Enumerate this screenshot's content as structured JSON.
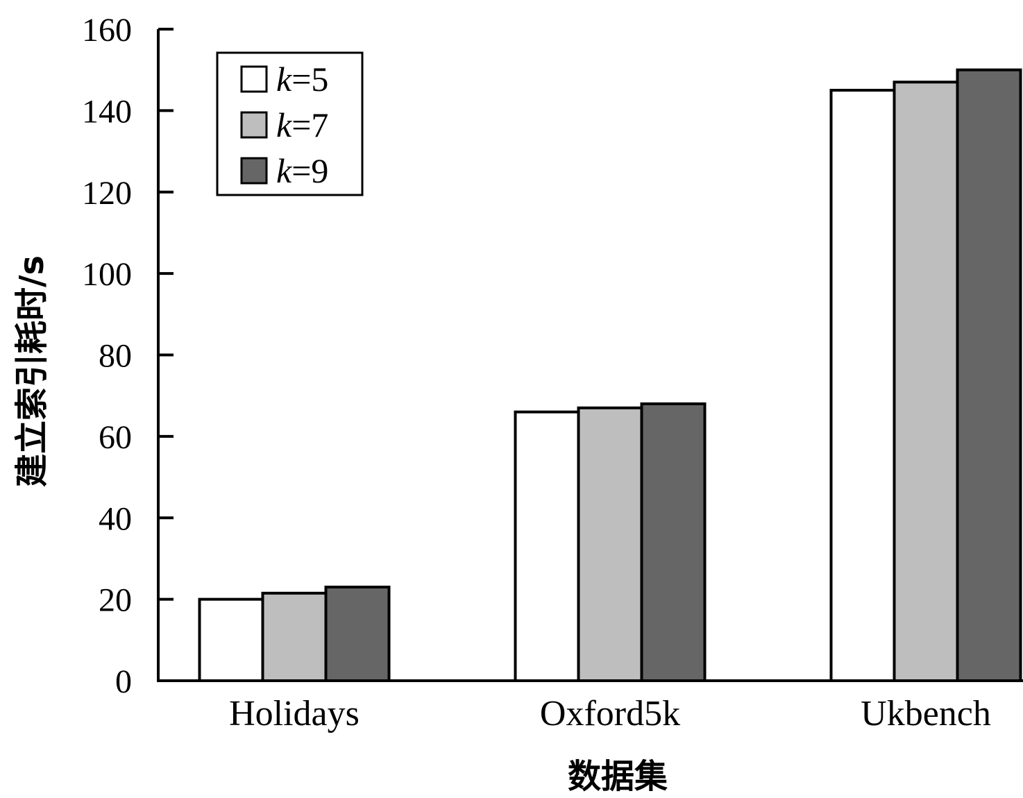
{
  "chart_data": {
    "type": "bar",
    "categories": [
      "Holidays",
      "Oxford5k",
      "Ukbench"
    ],
    "series": [
      {
        "name_prefix": "k",
        "name_suffix": "=5",
        "values": [
          20,
          66,
          145
        ],
        "color": "#ffffff"
      },
      {
        "name_prefix": "k",
        "name_suffix": "=7",
        "values": [
          21.5,
          67,
          147
        ],
        "color": "#bebebe"
      },
      {
        "name_prefix": "k",
        "name_suffix": "=9",
        "values": [
          23,
          68,
          150
        ],
        "color": "#666666"
      }
    ],
    "xlabel": "数据集",
    "ylabel": "建立索引耗时/s",
    "ylim": [
      0,
      160
    ],
    "yticks": [
      0,
      20,
      40,
      60,
      80,
      100,
      120,
      140,
      160
    ],
    "grid": false,
    "legend_position": "top-left"
  }
}
